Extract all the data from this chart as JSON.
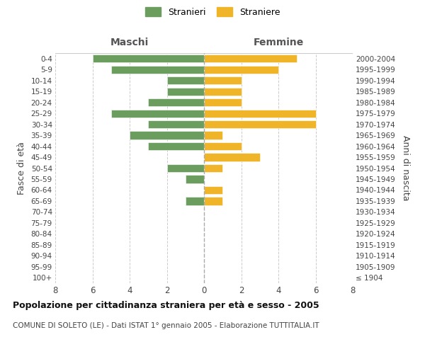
{
  "age_groups": [
    "100+",
    "95-99",
    "90-94",
    "85-89",
    "80-84",
    "75-79",
    "70-74",
    "65-69",
    "60-64",
    "55-59",
    "50-54",
    "45-49",
    "40-44",
    "35-39",
    "30-34",
    "25-29",
    "20-24",
    "15-19",
    "10-14",
    "5-9",
    "0-4"
  ],
  "birth_years": [
    "≤ 1904",
    "1905-1909",
    "1910-1914",
    "1915-1919",
    "1920-1924",
    "1925-1929",
    "1930-1934",
    "1935-1939",
    "1940-1944",
    "1945-1949",
    "1950-1954",
    "1955-1959",
    "1960-1964",
    "1965-1969",
    "1970-1974",
    "1975-1979",
    "1980-1984",
    "1985-1989",
    "1990-1994",
    "1995-1999",
    "2000-2004"
  ],
  "maschi": [
    0,
    0,
    0,
    0,
    0,
    0,
    0,
    1,
    0,
    1,
    2,
    0,
    3,
    4,
    3,
    5,
    3,
    2,
    2,
    5,
    6
  ],
  "femmine": [
    0,
    0,
    0,
    0,
    0,
    0,
    0,
    1,
    1,
    0,
    1,
    3,
    2,
    1,
    6,
    6,
    2,
    2,
    2,
    4,
    5
  ],
  "color_maschi": "#6b9e5e",
  "color_femmine": "#f0b429",
  "title": "Popolazione per cittadinanza straniera per età e sesso - 2005",
  "subtitle": "COMUNE DI SOLETO (LE) - Dati ISTAT 1° gennaio 2005 - Elaborazione TUTTITALIA.IT",
  "ylabel_left": "Fasce di età",
  "ylabel_right": "Anni di nascita",
  "xlabel_left": "Maschi",
  "xlabel_right": "Femmine",
  "legend_maschi": "Stranieri",
  "legend_femmine": "Straniere",
  "xlim": 8,
  "background_color": "#ffffff",
  "grid_color": "#cccccc"
}
